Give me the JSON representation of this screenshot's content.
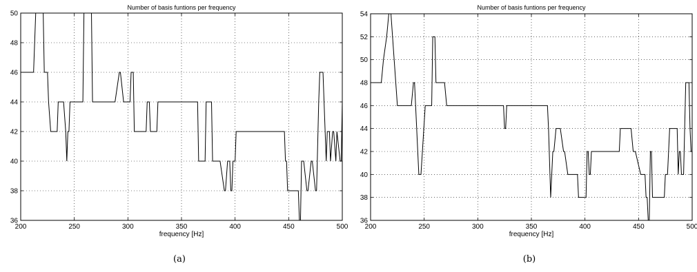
{
  "chart_data": [
    {
      "type": "line",
      "title": "Number of basis funtions per frequency",
      "xlabel": "frequency [Hz]",
      "ylabel": "",
      "caption": "(a)",
      "xlim": [
        200,
        500
      ],
      "ylim": [
        36,
        50
      ],
      "xticks": [
        200,
        250,
        300,
        350,
        400,
        450,
        500
      ],
      "yticks": [
        36,
        38,
        40,
        42,
        44,
        46,
        48,
        50
      ],
      "grid": true,
      "x": [
        200,
        212,
        214,
        221,
        222,
        225,
        226,
        228,
        234,
        235,
        240,
        242,
        243,
        244,
        245,
        246,
        247,
        258,
        259,
        266,
        267,
        287,
        288,
        292,
        293,
        296,
        297,
        302,
        303,
        305,
        306,
        308,
        317,
        318,
        320,
        321,
        322,
        327,
        328,
        365,
        366,
        372,
        373,
        378,
        379,
        385,
        386,
        390,
        391,
        393,
        394,
        395,
        396,
        397,
        398,
        400,
        401,
        402,
        403,
        446,
        447,
        448,
        449,
        459,
        460,
        461,
        462,
        463,
        464,
        467,
        468,
        471,
        472,
        475,
        476,
        478,
        479,
        482,
        483,
        485,
        486,
        488,
        489,
        491,
        492,
        494,
        495,
        498,
        499,
        500
      ],
      "y": [
        46,
        46,
        50,
        50,
        46,
        46,
        44,
        42,
        42,
        44,
        44,
        42,
        40,
        42,
        42,
        44,
        44,
        44,
        50,
        50,
        44,
        44,
        44,
        46,
        46,
        44,
        44,
        44,
        46,
        46,
        42,
        42,
        42,
        44,
        44,
        42,
        42,
        42,
        44,
        44,
        40,
        40,
        44,
        44,
        40,
        40,
        40,
        38,
        38,
        40,
        40,
        40,
        38,
        38,
        40,
        40,
        42,
        42,
        42,
        42,
        40,
        40,
        38,
        38,
        36,
        36,
        40,
        40,
        40,
        38,
        38,
        40,
        40,
        38,
        38,
        44,
        46,
        46,
        44,
        40,
        42,
        42,
        40,
        42,
        42,
        40,
        42,
        40,
        40,
        44
      ]
    },
    {
      "type": "line",
      "title": "Number of basis funtions per frequency",
      "xlabel": "frequency [Hz]",
      "ylabel": "",
      "caption": "(b)",
      "xlim": [
        200,
        500
      ],
      "ylim": [
        36,
        54
      ],
      "xticks": [
        200,
        250,
        300,
        350,
        400,
        450,
        500
      ],
      "yticks": [
        36,
        38,
        40,
        42,
        44,
        46,
        48,
        50,
        52,
        54
      ],
      "grid": true,
      "x": [
        200,
        210,
        212,
        215,
        217,
        219,
        222,
        225,
        237,
        238,
        240,
        241,
        242,
        244,
        245,
        247,
        251,
        252,
        256,
        257,
        258,
        259,
        260,
        261,
        263,
        264,
        268,
        269,
        271,
        272,
        324,
        325,
        326,
        327,
        365,
        366,
        368,
        369,
        370,
        371,
        373,
        374,
        376,
        377,
        380,
        381,
        384,
        385,
        393,
        394,
        401,
        402,
        403,
        404,
        405,
        406,
        407,
        408,
        409,
        431,
        432,
        433,
        438,
        440,
        443,
        445,
        446,
        447,
        452,
        453,
        454,
        455,
        456,
        457,
        458,
        459,
        460,
        461,
        462,
        463,
        464,
        465,
        467,
        468,
        469,
        470,
        474,
        475,
        476,
        477,
        479,
        480,
        482,
        483,
        484,
        486,
        487,
        488,
        489,
        490,
        491,
        492,
        493,
        494,
        495,
        496,
        497,
        498,
        499,
        500
      ],
      "y": [
        48,
        48,
        50,
        52,
        54,
        54,
        50,
        46,
        46,
        46,
        48,
        48,
        46,
        42,
        40,
        40,
        46,
        46,
        46,
        46,
        52,
        52,
        52,
        48,
        48,
        48,
        48,
        48,
        46,
        46,
        46,
        44,
        44,
        46,
        46,
        44,
        38,
        40,
        42,
        42,
        44,
        44,
        44,
        44,
        42,
        42,
        40,
        40,
        40,
        38,
        38,
        42,
        42,
        40,
        40,
        42,
        42,
        42,
        42,
        42,
        42,
        44,
        44,
        44,
        44,
        42,
        42,
        42,
        40,
        40,
        40,
        40,
        40,
        38,
        38,
        36,
        36,
        42,
        42,
        38,
        38,
        38,
        38,
        38,
        38,
        38,
        38,
        40,
        40,
        40,
        44,
        44,
        44,
        44,
        44,
        44,
        40,
        42,
        42,
        40,
        40,
        40,
        44,
        48,
        48,
        48,
        48,
        44,
        42,
        42
      ]
    }
  ]
}
